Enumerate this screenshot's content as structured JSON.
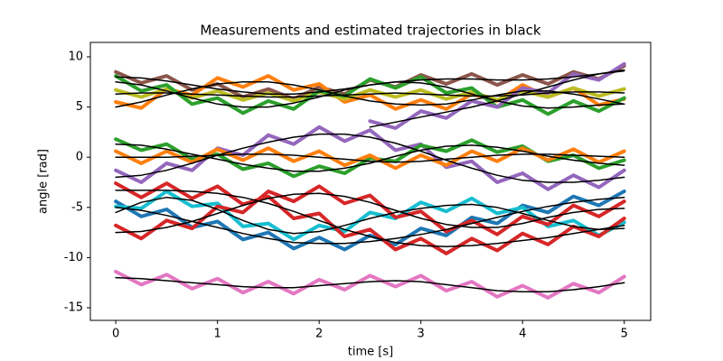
{
  "chart_data": {
    "type": "line",
    "title": "Measurements and estimated trajectories in black",
    "xlabel": "time [s]",
    "ylabel": "angle [rad]",
    "x": [
      0,
      0.25,
      0.5,
      0.75,
      1,
      1.25,
      1.5,
      1.75,
      2,
      2.25,
      2.5,
      2.75,
      3,
      3.25,
      3.5,
      3.75,
      4,
      4.25,
      4.5,
      4.75,
      5
    ],
    "xlim": [
      -0.25,
      5.26
    ],
    "xticks": [
      0,
      1,
      2,
      3,
      4,
      5
    ],
    "ylim": [
      -16.26,
      11.44
    ],
    "yticks": [
      -15,
      -10,
      -5,
      0,
      5,
      10
    ],
    "series": [
      {
        "color": "#8c564b",
        "values": [
          8.5,
          7.4,
          8.1,
          6.7,
          7.3,
          6.0,
          6.8,
          5.8,
          7.0,
          6.3,
          7.7,
          7.0,
          8.2,
          7.3,
          8.3,
          7.2,
          8.2,
          7.3,
          8.5,
          7.8,
          9.1
        ]
      },
      {
        "color": "#ff7f0e",
        "values": [
          5.5,
          4.9,
          6.8,
          6.2,
          7.9,
          7.0,
          8.1,
          6.7,
          7.3,
          5.5,
          6.2,
          4.8,
          5.7,
          4.8,
          6.3,
          5.6,
          7.2,
          6.0,
          6.9,
          5.2,
          5.8
        ]
      },
      {
        "color": "#bcbd22",
        "values": [
          6.7,
          6.0,
          6.8,
          5.9,
          6.6,
          5.7,
          6.4,
          5.6,
          6.5,
          5.8,
          6.7,
          6.0,
          6.7,
          5.8,
          6.5,
          5.7,
          6.6,
          6.0,
          6.9,
          6.1,
          6.8
        ]
      },
      {
        "color": "#2ca02c",
        "values": [
          8.1,
          6.6,
          7.2,
          5.3,
          5.9,
          4.4,
          5.6,
          4.8,
          6.6,
          6.1,
          7.8,
          6.9,
          8.0,
          6.4,
          6.9,
          5.0,
          5.7,
          4.3,
          5.6,
          4.6,
          5.9
        ]
      },
      {
        "color": "#9467bd",
        "values": [
          null,
          null,
          null,
          null,
          null,
          null,
          null,
          null,
          null,
          null,
          3.6,
          2.9,
          4.6,
          3.9,
          5.6,
          5.0,
          6.9,
          6.4,
          8.3,
          7.7,
          9.3
        ]
      },
      {
        "color": "#9467bd",
        "values": [
          -1.3,
          -2.5,
          -0.6,
          -1.3,
          0.9,
          0.2,
          2.2,
          1.3,
          3.0,
          1.6,
          2.7,
          0.7,
          1.3,
          -1.0,
          -0.4,
          -2.5,
          -1.6,
          -3.2,
          -1.8,
          -3.0,
          -1.3
        ]
      },
      {
        "color": "#2ca02c",
        "values": [
          1.8,
          0.7,
          1.3,
          -0.2,
          0.3,
          -1.2,
          -0.6,
          -1.9,
          -0.9,
          -1.6,
          -0.1,
          -0.4,
          1.2,
          0.6,
          1.7,
          0.5,
          1.1,
          -0.4,
          0.2,
          -1.1,
          -0.3
        ]
      },
      {
        "color": "#ff7f0e",
        "values": [
          0.6,
          -0.6,
          0.6,
          -0.5,
          0.8,
          -0.3,
          0.9,
          -0.4,
          0.6,
          -0.8,
          0.2,
          -1.1,
          0.2,
          -0.8,
          0.6,
          -0.4,
          0.9,
          -0.3,
          0.8,
          -0.5,
          0.6
        ]
      },
      {
        "color": "#1f77b4",
        "values": [
          -4.4,
          -5.9,
          -5.2,
          -7.0,
          -6.4,
          -8.2,
          -7.5,
          -9.1,
          -8.0,
          -9.2,
          -7.8,
          -8.7,
          -7.1,
          -7.8,
          -6.0,
          -6.6,
          -4.8,
          -5.5,
          -3.9,
          -4.8,
          -3.4
        ]
      },
      {
        "color": "#17becf",
        "values": [
          -4.9,
          -5.1,
          -3.4,
          -4.9,
          -4.6,
          -6.9,
          -6.6,
          -8.2,
          -6.8,
          -7.4,
          -5.5,
          -6.1,
          -4.5,
          -5.4,
          -4.1,
          -5.6,
          -5.0,
          -6.9,
          -6.3,
          -7.8,
          -6.5
        ]
      },
      {
        "color": "#d62728",
        "values": [
          -2.6,
          -4.0,
          -2.6,
          -4.1,
          -2.9,
          -4.7,
          -3.9,
          -6.1,
          -5.6,
          -7.9,
          -7.2,
          -9.2,
          -8.1,
          -9.6,
          -8.1,
          -9.3,
          -7.6,
          -8.7,
          -6.9,
          -7.9,
          -6.1
        ]
      },
      {
        "color": "#d62728",
        "values": [
          -6.8,
          -8.1,
          -6.3,
          -7.1,
          -4.9,
          -5.5,
          -3.4,
          -4.4,
          -2.9,
          -4.6,
          -3.8,
          -6.0,
          -5.4,
          -7.4,
          -6.3,
          -7.7,
          -5.9,
          -6.7,
          -4.8,
          -5.9,
          -4.4
        ]
      },
      {
        "color": "#e377c2",
        "values": [
          -11.4,
          -12.7,
          -11.7,
          -13.1,
          -12.1,
          -13.5,
          -12.4,
          -13.6,
          -12.2,
          -13.2,
          -11.8,
          -12.9,
          -11.8,
          -13.3,
          -12.4,
          -13.9,
          -12.8,
          -14.0,
          -12.6,
          -13.5,
          -11.9
        ]
      },
      {
        "color": "#000000",
        "values": [
          8,
          7.9,
          7.6,
          7.2,
          6.8,
          6.5,
          6.3,
          6.3,
          6.5,
          6.8,
          7.2,
          7.5,
          7.7,
          7.8,
          7.8,
          7.7,
          7.7,
          7.8,
          8.0,
          8.3,
          8.6
        ]
      },
      {
        "color": "#000000",
        "values": [
          5,
          5.5,
          6.2,
          6.8,
          7.3,
          7.5,
          7.5,
          7.2,
          6.7,
          6.1,
          5.6,
          5.3,
          5.2,
          5.3,
          5.7,
          6.2,
          6.6,
          6.6,
          6.3,
          5.8,
          5.3
        ]
      },
      {
        "color": "#000000",
        "values": [
          6.3,
          6.4,
          6.4,
          6.3,
          6.2,
          6.1,
          6.0,
          6.0,
          6.1,
          6.2,
          6.3,
          6.4,
          6.3,
          6.2,
          6.1,
          6.1,
          6.2,
          6.4,
          6.5,
          6.5,
          6.4
        ]
      },
      {
        "color": "#000000",
        "values": [
          7.5,
          7.2,
          6.6,
          5.9,
          5.3,
          5.0,
          5.0,
          5.4,
          6.0,
          6.7,
          7.2,
          7.5,
          7.4,
          7.0,
          6.3,
          5.6,
          5.1,
          4.9,
          5.0,
          5.2,
          5.3
        ]
      },
      {
        "color": "#000000",
        "values": [
          null,
          null,
          null,
          null,
          null,
          null,
          null,
          null,
          null,
          null,
          3.0,
          3.5,
          4.0,
          4.5,
          5.0,
          5.6,
          6.3,
          7.0,
          7.7,
          8.3,
          8.7
        ]
      },
      {
        "color": "#000000",
        "values": [
          -2.0,
          -1.8,
          -1.3,
          -0.6,
          0.2,
          0.9,
          1.5,
          2.0,
          2.3,
          2.3,
          2.0,
          1.4,
          0.6,
          -0.3,
          -1.1,
          -1.8,
          -2.3,
          -2.5,
          -2.5,
          -2.3,
          -2.0
        ]
      },
      {
        "color": "#000000",
        "values": [
          1.3,
          1.2,
          0.8,
          0.3,
          -0.2,
          -0.7,
          -1.1,
          -1.4,
          -1.4,
          -1.1,
          -0.6,
          0.1,
          0.7,
          1.1,
          1.2,
          1.0,
          0.6,
          0.1,
          -0.3,
          -0.6,
          -0.8
        ]
      },
      {
        "color": "#000000",
        "values": [
          0,
          0,
          0,
          0.1,
          0.2,
          0.3,
          0.3,
          0.2,
          0,
          -0.2,
          -0.4,
          -0.5,
          -0.4,
          -0.2,
          0,
          0.2,
          0.3,
          0.3,
          0.2,
          0.1,
          0
        ]
      },
      {
        "color": "#000000",
        "values": [
          -5.0,
          -5.3,
          -5.8,
          -6.4,
          -7.0,
          -7.6,
          -8.1,
          -8.5,
          -8.6,
          -8.6,
          -8.4,
          -8.1,
          -7.7,
          -7.2,
          -6.6,
          -6.0,
          -5.4,
          -4.9,
          -4.5,
          -4.2,
          -4.0
        ]
      },
      {
        "color": "#000000",
        "values": [
          -5.5,
          -4.5,
          -4.0,
          -4.3,
          -5.2,
          -6.3,
          -7.2,
          -7.6,
          -7.4,
          -6.8,
          -6.1,
          -5.5,
          -5.1,
          -4.8,
          -4.7,
          -5.0,
          -5.6,
          -6.3,
          -6.9,
          -7.2,
          -7.1
        ]
      },
      {
        "color": "#000000",
        "values": [
          -3.3,
          -3.3,
          -3.3,
          -3.4,
          -3.6,
          -4.0,
          -4.6,
          -5.4,
          -6.3,
          -7.2,
          -7.9,
          -8.5,
          -8.8,
          -8.9,
          -8.8,
          -8.6,
          -8.3,
          -8.0,
          -7.6,
          -7.2,
          -6.8
        ]
      },
      {
        "color": "#000000",
        "values": [
          -7.5,
          -7.4,
          -7.0,
          -6.4,
          -5.6,
          -4.8,
          -4.1,
          -3.7,
          -3.6,
          -3.9,
          -4.5,
          -5.3,
          -6.1,
          -6.7,
          -7.0,
          -7.0,
          -6.6,
          -6.0,
          -5.5,
          -5.2,
          -5.1
        ]
      },
      {
        "color": "#000000",
        "values": [
          -12.0,
          -12.1,
          -12.3,
          -12.5,
          -12.7,
          -12.9,
          -13.0,
          -13.0,
          -12.8,
          -12.6,
          -12.4,
          -12.3,
          -12.4,
          -12.7,
          -13.0,
          -13.3,
          -13.4,
          -13.4,
          -13.2,
          -12.9,
          -12.5
        ]
      }
    ]
  }
}
